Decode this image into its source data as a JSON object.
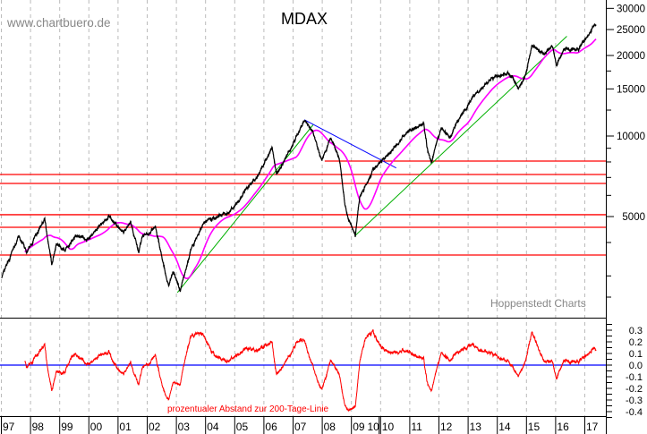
{
  "header": {
    "title": "MDAX",
    "watermark": "www.chartbuero.de",
    "source": "Hoppenstedt Charts"
  },
  "chart_data": [
    {
      "type": "line",
      "title": "MDAX",
      "y_scale": "log",
      "ylim": [
        2300,
        32000
      ],
      "y_ticks": [
        "30000",
        "25000",
        "20000",
        "15000",
        "10000",
        "5000"
      ],
      "y_tick_values": [
        30000,
        25000,
        20000,
        15000,
        10000,
        5000
      ],
      "x_ticks": [
        "97",
        "98",
        "99",
        "00",
        "01",
        "02",
        "03",
        "04",
        "05",
        "06",
        "07",
        "08",
        "09",
        "10",
        "10",
        "11",
        "12",
        "13",
        "14",
        "15",
        "16",
        "17"
      ],
      "x_tick_years": [
        1997,
        1998,
        1999,
        2000,
        2001,
        2002,
        2003,
        2004,
        2005,
        2006,
        2007,
        2008,
        2009,
        2009.95,
        2010,
        2011,
        2012,
        2013,
        2014,
        2015,
        2016,
        2017
      ],
      "grid": "vertical dashed at year boundaries",
      "series": [
        {
          "role": "price",
          "color": "#000000",
          "points": [
            [
              1997.03,
              2970
            ],
            [
              1997.6,
              4190
            ],
            [
              1997.9,
              3670
            ],
            [
              1998.5,
              4890
            ],
            [
              1998.75,
              3320
            ],
            [
              1998.9,
              3940
            ],
            [
              1999.2,
              3730
            ],
            [
              1999.6,
              4250
            ],
            [
              2000.0,
              4130
            ],
            [
              2000.7,
              5000
            ],
            [
              2001.2,
              4350
            ],
            [
              2001.45,
              4810
            ],
            [
              2001.72,
              3650
            ],
            [
              2001.87,
              4250
            ],
            [
              2002.3,
              4520
            ],
            [
              2002.55,
              3380
            ],
            [
              2002.75,
              2750
            ],
            [
              2002.9,
              3130
            ],
            [
              2003.15,
              2640
            ],
            [
              2003.5,
              3730
            ],
            [
              2004.0,
              4810
            ],
            [
              2004.35,
              4960
            ],
            [
              2004.85,
              5200
            ],
            [
              2005.15,
              5790
            ],
            [
              2005.45,
              6400
            ],
            [
              2005.8,
              7070
            ],
            [
              2006.3,
              9050
            ],
            [
              2006.45,
              7180
            ],
            [
              2006.95,
              9050
            ],
            [
              2007.4,
              11400
            ],
            [
              2007.7,
              10300
            ],
            [
              2008.0,
              8060
            ],
            [
              2008.3,
              9900
            ],
            [
              2008.6,
              8250
            ],
            [
              2008.8,
              5480
            ],
            [
              2008.9,
              4960
            ],
            [
              2009.15,
              4250
            ],
            [
              2009.3,
              5920
            ],
            [
              2009.75,
              7460
            ],
            [
              2010.25,
              8510
            ],
            [
              2010.95,
              10400
            ],
            [
              2011.5,
              11140
            ],
            [
              2011.6,
              9190
            ],
            [
              2011.75,
              7940
            ],
            [
              2012.1,
              10720
            ],
            [
              2012.4,
              9920
            ],
            [
              2012.7,
              11570
            ],
            [
              2013.2,
              14140
            ],
            [
              2013.85,
              16490
            ],
            [
              2014.4,
              17160
            ],
            [
              2014.75,
              15150
            ],
            [
              2015.0,
              17000
            ],
            [
              2015.2,
              21900
            ],
            [
              2015.6,
              20300
            ],
            [
              2015.9,
              21600
            ],
            [
              2016.05,
              18380
            ],
            [
              2016.3,
              21100
            ],
            [
              2016.8,
              21100
            ],
            [
              2017.3,
              25600
            ],
            [
              2017.4,
              25800
            ]
          ]
        },
        {
          "role": "200-day moving average",
          "color": "#ff00ff"
        }
      ],
      "horizontal_lines": {
        "color": "#ff0000",
        "values": [
          8060,
          7180,
          6650,
          5080,
          4560,
          3590
        ],
        "partial_start_year": [
          2008.1,
          null,
          null,
          null,
          null,
          null
        ]
      },
      "trendlines": [
        {
          "color": "#00b000",
          "from": [
            2003.05,
            2600
          ],
          "to": [
            2007.7,
            11000
          ]
        },
        {
          "color": "#0000ff",
          "from": [
            2007.4,
            11500
          ],
          "to": [
            2010.55,
            7600
          ]
        },
        {
          "color": "#00b000",
          "from": [
            2009.15,
            4250
          ],
          "to": [
            2016.4,
            23600
          ]
        }
      ]
    },
    {
      "type": "line",
      "annotation": "prozentualer Abstand zur 200-Tage-Linie",
      "ylim": [
        -0.45,
        0.38
      ],
      "y_ticks": [
        "0.3",
        "0.2",
        "0.1",
        "0.0",
        "-0.1",
        "-0.2",
        "-0.3",
        "-0.4"
      ],
      "y_tick_values": [
        0.3,
        0.2,
        0.1,
        0.0,
        -0.1,
        -0.2,
        -0.3,
        -0.4
      ],
      "series": [
        {
          "role": "distance to 200-day line",
          "color": "#ff0000"
        }
      ],
      "zero_line_color": "#0000ff"
    }
  ]
}
